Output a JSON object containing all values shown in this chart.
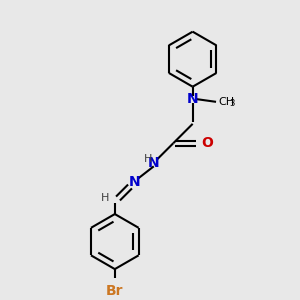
{
  "background_color": "#e8e8e8",
  "atom_colors": {
    "N": "#0000cc",
    "O": "#cc0000",
    "Br": "#cc7722",
    "H": "#404040",
    "C": "#000000"
  },
  "bond_color": "#000000",
  "bond_lw": 1.5,
  "figsize": [
    3.0,
    3.0
  ],
  "dpi": 100,
  "xlim": [
    0.0,
    1.0
  ],
  "ylim": [
    0.0,
    1.0
  ]
}
